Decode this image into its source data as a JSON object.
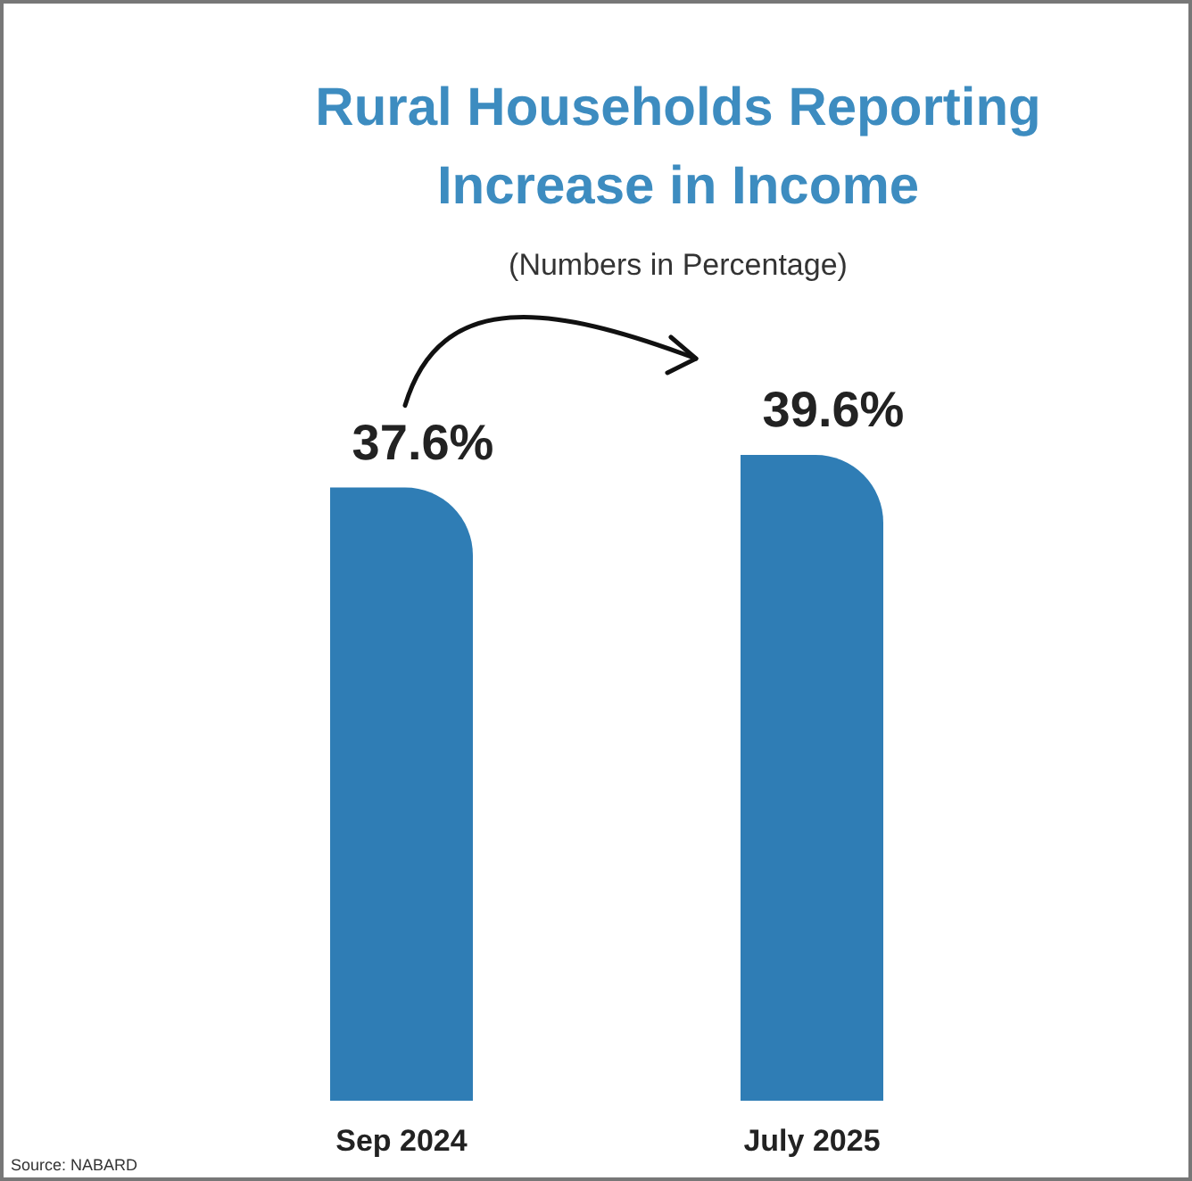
{
  "chart_data": {
    "type": "bar",
    "title": "Rural Households Reporting Increase in Income",
    "subtitle": "(Numbers in Percentage)",
    "categories": [
      "Sep 2024",
      "July 2025"
    ],
    "values": [
      37.6,
      39.6
    ],
    "color": "#2f7db5",
    "value_labels": [
      "37.6%",
      "39.6%"
    ],
    "annotations": [
      "Source: NABARD"
    ]
  }
}
